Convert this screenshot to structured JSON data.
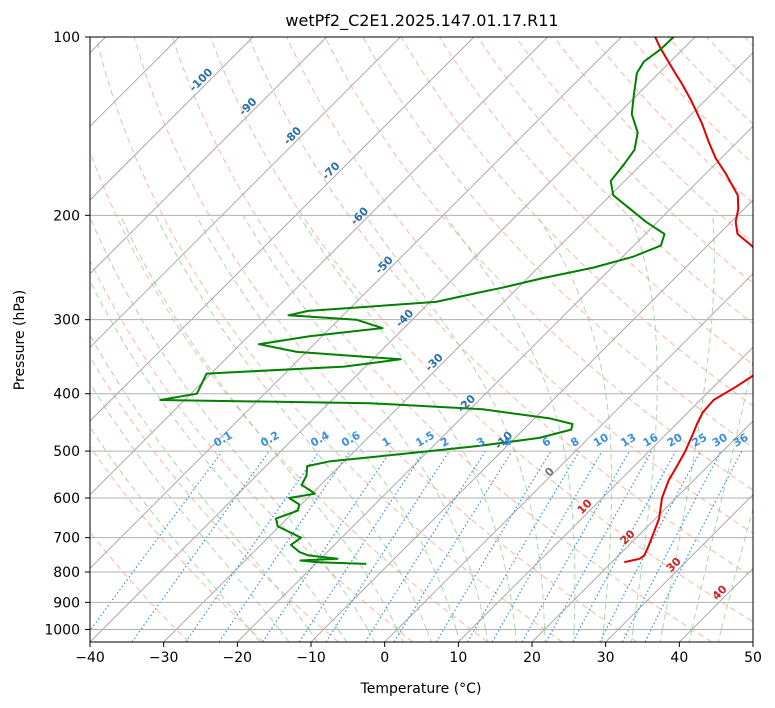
{
  "chart_data": {
    "type": "skew-t",
    "title": "wetPf2_C2E1.2025.147.01.17.R11",
    "xlabel": "Temperature (°C)",
    "ylabel": "Pressure (hPa)",
    "xlim": [
      -40,
      50
    ],
    "ylim_hpa": [
      1050,
      100
    ],
    "log_pressure_axis": true,
    "x_ticks": [
      "−40",
      "−30",
      "−20",
      "−10",
      "0",
      "10",
      "20",
      "30",
      "40",
      "50"
    ],
    "x_tick_values": [
      -40,
      -30,
      -20,
      -10,
      0,
      10,
      20,
      30,
      40,
      50
    ],
    "y_ticks": [
      "100",
      "200",
      "300",
      "400",
      "500",
      "600",
      "700",
      "800",
      "900",
      "1000"
    ],
    "y_tick_values": [
      100,
      200,
      300,
      400,
      500,
      600,
      700,
      800,
      900,
      1000
    ],
    "grid": true,
    "colors": {
      "temperature": "#e00000",
      "dewpoint": "#008000",
      "isotherm": "#aaaaaa",
      "dry_adiabat": "#f7a080",
      "moist_adiabat": "#8ec98e",
      "mixing_ratio": "#3a8ee0",
      "isotherm_label": "#2a6fa8",
      "adiabat_label": "#cc2222"
    },
    "isotherm_labels": [
      "-100",
      "-90",
      "-80",
      "-70",
      "-60",
      "-50",
      "-40",
      "-30",
      "-20",
      "-10"
    ],
    "isotherm_label_values": [
      -100,
      -90,
      -80,
      -70,
      -60,
      -50,
      -40,
      -30,
      -20,
      -10
    ],
    "zero_label": "0",
    "adiabat_labels": [
      "10",
      "20",
      "30",
      "40"
    ],
    "adiabat_label_values": [
      10,
      20,
      30,
      40
    ],
    "mixing_ratio_labels": [
      "0.1",
      "0.2",
      "0.4",
      "0.6",
      "1",
      "1.5",
      "2",
      "3",
      "4",
      "6",
      "8",
      "10",
      "13",
      "16",
      "20",
      "25",
      "30",
      "36"
    ],
    "mixing_ratio_values": [
      0.1,
      0.2,
      0.4,
      0.6,
      1,
      1.5,
      2,
      3,
      4,
      6,
      8,
      10,
      13,
      16,
      20,
      25,
      30,
      36
    ],
    "series": [
      {
        "key": "temperature",
        "points": [
          [
            770,
            21.7
          ],
          [
            760,
            23.3
          ],
          [
            750,
            23.5
          ],
          [
            720,
            22.7
          ],
          [
            700,
            22.1
          ],
          [
            650,
            20.5
          ],
          [
            600,
            18.1
          ],
          [
            560,
            16.6
          ],
          [
            530,
            15.8
          ],
          [
            500,
            14.9
          ],
          [
            470,
            13.7
          ],
          [
            450,
            12.8
          ],
          [
            430,
            12.0
          ],
          [
            410,
            11.8
          ],
          [
            390,
            13.0
          ],
          [
            370,
            14.0
          ],
          [
            350,
            14.0
          ],
          [
            330,
            12.4
          ],
          [
            310,
            9.8
          ],
          [
            300,
            8.1
          ],
          [
            290,
            6.2
          ],
          [
            280,
            5.3
          ],
          [
            270,
            4.5
          ],
          [
            255,
            2.9
          ],
          [
            240,
            0.2
          ],
          [
            225,
            -4.0
          ],
          [
            215,
            -7.5
          ],
          [
            205,
            -9.4
          ],
          [
            195,
            -10.8
          ],
          [
            185,
            -12.7
          ],
          [
            170,
            -17.3
          ],
          [
            160,
            -20.8
          ],
          [
            150,
            -24.0
          ],
          [
            140,
            -27.3
          ],
          [
            128,
            -31.9
          ],
          [
            120,
            -35.4
          ],
          [
            115,
            -37.8
          ],
          [
            110,
            -40.3
          ],
          [
            104,
            -43.4
          ],
          [
            100,
            -45.4
          ]
        ]
      },
      {
        "key": "dewpoint",
        "points": [
          [
            775,
            -13.1
          ],
          [
            770,
            -19.9
          ],
          [
            765,
            -22.5
          ],
          [
            760,
            -17.7
          ],
          [
            750,
            -22.1
          ],
          [
            740,
            -23.8
          ],
          [
            720,
            -25.9
          ],
          [
            700,
            -25.5
          ],
          [
            670,
            -30.2
          ],
          [
            650,
            -31.5
          ],
          [
            630,
            -29.6
          ],
          [
            615,
            -30.3
          ],
          [
            600,
            -32.5
          ],
          [
            590,
            -29.6
          ],
          [
            570,
            -32.6
          ],
          [
            550,
            -33.2
          ],
          [
            530,
            -34.4
          ],
          [
            520,
            -31.9
          ],
          [
            510,
            -25.8
          ],
          [
            500,
            -19.8
          ],
          [
            490,
            -13.8
          ],
          [
            475,
            -6.7
          ],
          [
            460,
            -3.5
          ],
          [
            450,
            -4.1
          ],
          [
            440,
            -8.1
          ],
          [
            425,
            -18.3
          ],
          [
            415,
            -34.4
          ],
          [
            410,
            -63.3
          ],
          [
            400,
            -59.2
          ],
          [
            370,
            -60.6
          ],
          [
            360,
            -42.9
          ],
          [
            350,
            -36.2
          ],
          [
            340,
            -51.3
          ],
          [
            330,
            -57.5
          ],
          [
            320,
            -51.7
          ],
          [
            310,
            -42.9
          ],
          [
            300,
            -47.6
          ],
          [
            295,
            -57.4
          ],
          [
            290,
            -55.3
          ],
          [
            280,
            -39.2
          ],
          [
            270,
            -34.7
          ],
          [
            265,
            -32.2
          ],
          [
            255,
            -27.8
          ],
          [
            245,
            -22.5
          ],
          [
            235,
            -18.6
          ],
          [
            225,
            -16.3
          ],
          [
            215,
            -17.4
          ],
          [
            205,
            -21.6
          ],
          [
            195,
            -25.5
          ],
          [
            185,
            -29.6
          ],
          [
            175,
            -31.9
          ],
          [
            165,
            -32.3
          ],
          [
            155,
            -32.9
          ],
          [
            145,
            -34.8
          ],
          [
            135,
            -38.1
          ],
          [
            125,
            -40.5
          ],
          [
            115,
            -43.0
          ],
          [
            110,
            -43.6
          ],
          [
            105,
            -43.0
          ],
          [
            100,
            -42.9
          ]
        ]
      }
    ]
  }
}
